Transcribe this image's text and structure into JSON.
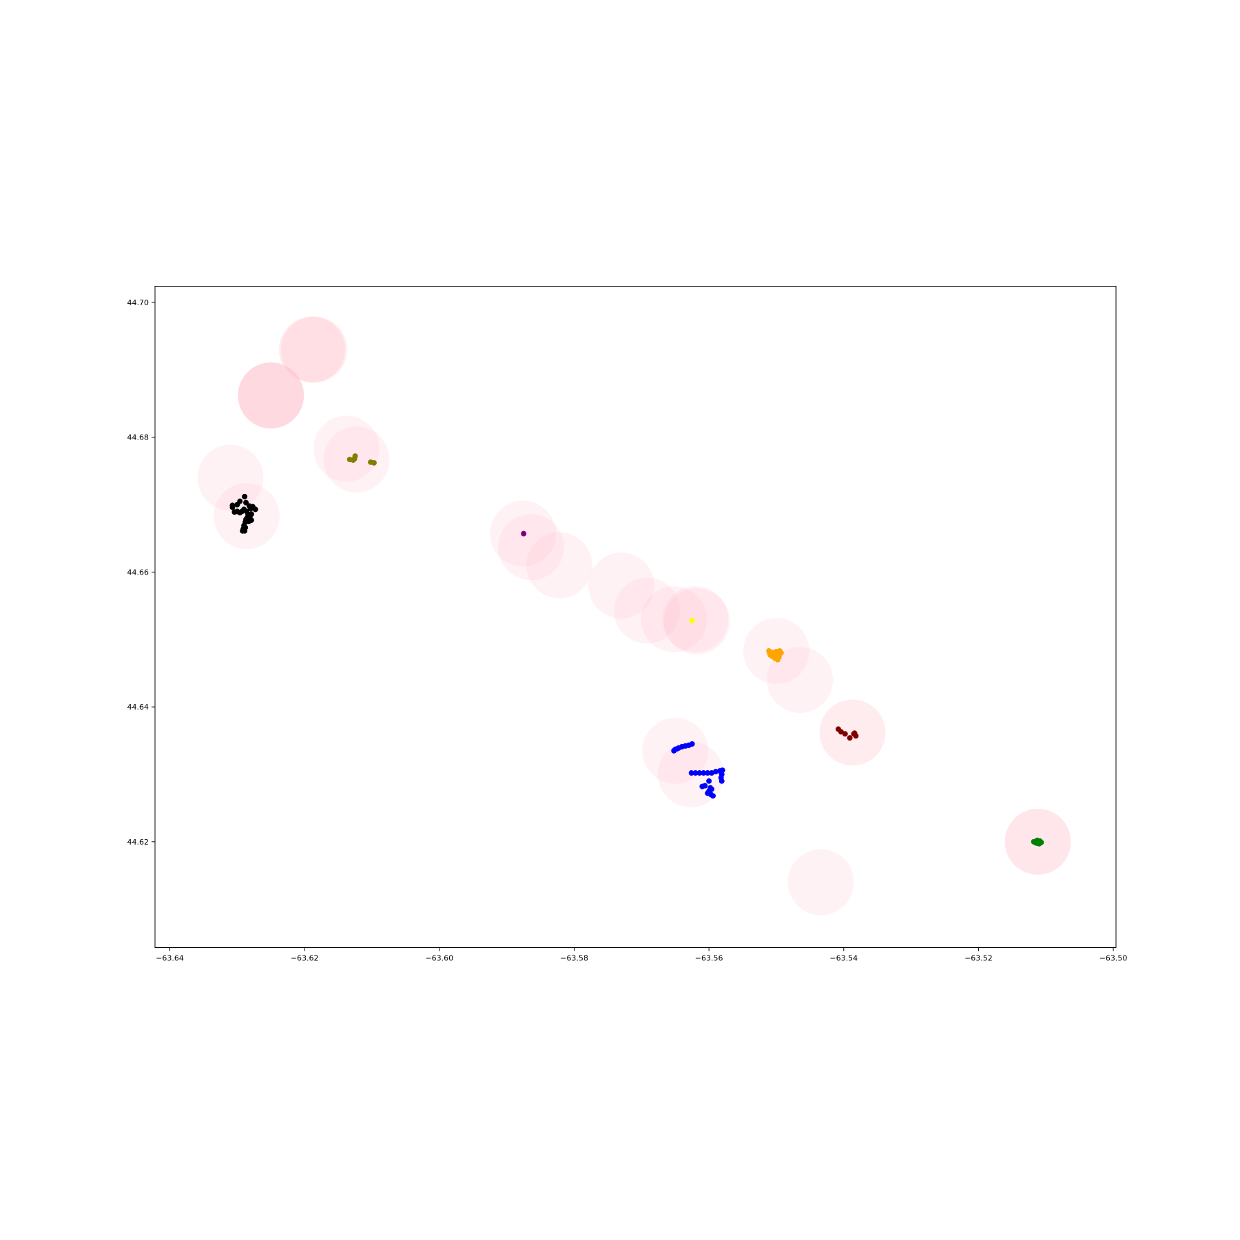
{
  "chart_data": {
    "type": "scatter",
    "xlim": [
      -63.6422,
      -63.4996
    ],
    "ylim": [
      44.6043,
      44.7024
    ],
    "x_ticks": [
      -63.64,
      -63.62,
      -63.6,
      -63.58,
      -63.56,
      -63.54,
      -63.52,
      -63.5
    ],
    "y_ticks": [
      44.62,
      44.64,
      44.66,
      44.68,
      44.7
    ],
    "x_tick_labels": [
      "−63.64",
      "−63.62",
      "−63.60",
      "−63.58",
      "−63.56",
      "−63.54",
      "−63.52",
      "−63.50"
    ],
    "y_tick_labels": [
      "44.62",
      "44.64",
      "44.66",
      "44.68",
      "44.70"
    ],
    "grid": false,
    "legend": "none",
    "circle_color": "#ffc0cb",
    "circle_radius_deg": 0.0049,
    "circles": [
      {
        "x": -63.6189,
        "y": 44.693,
        "alpha": 0.3
      },
      {
        "x": -63.6186,
        "y": 44.693,
        "alpha": 0.3
      },
      {
        "x": -63.625,
        "y": 44.6862,
        "alpha": 0.6
      },
      {
        "x": -63.6138,
        "y": 44.6783,
        "alpha": 0.2
      },
      {
        "x": -63.6123,
        "y": 44.6767,
        "alpha": 0.2
      },
      {
        "x": -63.631,
        "y": 44.674,
        "alpha": 0.2
      },
      {
        "x": -63.6286,
        "y": 44.6683,
        "alpha": 0.2
      },
      {
        "x": -63.5876,
        "y": 44.6657,
        "alpha": 0.2
      },
      {
        "x": -63.5864,
        "y": 44.6637,
        "alpha": 0.2
      },
      {
        "x": -63.5822,
        "y": 44.661,
        "alpha": 0.2
      },
      {
        "x": -63.573,
        "y": 44.658,
        "alpha": 0.2
      },
      {
        "x": -63.5692,
        "y": 44.6543,
        "alpha": 0.2
      },
      {
        "x": -63.5652,
        "y": 44.653,
        "alpha": 0.2
      },
      {
        "x": -63.5618,
        "y": 44.6527,
        "alpha": 0.2
      },
      {
        "x": -63.562,
        "y": 44.653,
        "alpha": 0.2
      },
      {
        "x": -63.55,
        "y": 44.6483,
        "alpha": 0.2
      },
      {
        "x": -63.5465,
        "y": 44.644,
        "alpha": 0.2
      },
      {
        "x": -63.5387,
        "y": 44.6362,
        "alpha": 0.3
      },
      {
        "x": -63.565,
        "y": 44.6335,
        "alpha": 0.2
      },
      {
        "x": -63.5627,
        "y": 44.63,
        "alpha": 0.2
      },
      {
        "x": -63.5112,
        "y": 44.62,
        "alpha": 0.4
      },
      {
        "x": -63.5434,
        "y": 44.614,
        "alpha": 0.2
      }
    ],
    "series": [
      {
        "color": "#000000",
        "points": [
          [
            -63.6289,
            44.6712
          ],
          [
            -63.6307,
            44.6699
          ],
          [
            -63.6307,
            44.6696
          ],
          [
            -63.6296,
            44.6705
          ],
          [
            -63.63,
            44.67
          ],
          [
            -63.6287,
            44.6703
          ],
          [
            -63.6282,
            44.6698
          ],
          [
            -63.6277,
            44.6697
          ],
          [
            -63.6273,
            44.6693
          ],
          [
            -63.628,
            44.6694
          ],
          [
            -63.6304,
            44.6689
          ],
          [
            -63.63,
            44.669
          ],
          [
            -63.6296,
            44.6688
          ],
          [
            -63.6293,
            44.669
          ],
          [
            -63.629,
            44.6693
          ],
          [
            -63.6286,
            44.669
          ],
          [
            -63.6284,
            44.6686
          ],
          [
            -63.6281,
            44.6683
          ],
          [
            -63.6279,
            44.6686
          ],
          [
            -63.6285,
            44.6681
          ],
          [
            -63.6287,
            44.6678
          ],
          [
            -63.6283,
            44.6675
          ],
          [
            -63.6279,
            44.6677
          ],
          [
            -63.6288,
            44.6674
          ],
          [
            -63.629,
            44.6669
          ],
          [
            -63.6291,
            44.6664
          ],
          [
            -63.6289,
            44.6661
          ],
          [
            -63.6292,
            44.6661
          ],
          [
            -63.6288,
            44.6666
          ],
          [
            -63.6284,
            44.6676
          ]
        ]
      },
      {
        "color": "#808000",
        "points": [
          [
            -63.6125,
            44.6772
          ],
          [
            -63.6133,
            44.6767
          ],
          [
            -63.6128,
            44.6766
          ],
          [
            -63.6126,
            44.6768
          ],
          [
            -63.6102,
            44.6763
          ],
          [
            -63.6097,
            44.6762
          ]
        ]
      },
      {
        "color": "#800080",
        "points": [
          [
            -63.5875,
            44.6657
          ]
        ]
      },
      {
        "color": "#ffff00",
        "points": [
          [
            -63.5625,
            44.6528
          ]
        ]
      },
      {
        "color": "#ffa500",
        "points": [
          [
            -63.5511,
            44.6483
          ],
          [
            -63.5505,
            44.6481
          ],
          [
            -63.55,
            44.6482
          ],
          [
            -63.5495,
            44.6483
          ],
          [
            -63.5493,
            44.648
          ],
          [
            -63.5509,
            44.6477
          ],
          [
            -63.5506,
            44.6475
          ],
          [
            -63.5502,
            44.6472
          ],
          [
            -63.5498,
            44.647
          ],
          [
            -63.5503,
            44.6478
          ],
          [
            -63.5499,
            44.6477
          ],
          [
            -63.5496,
            44.6474
          ],
          [
            -63.551,
            44.648
          ],
          [
            -63.5501,
            44.6475
          ]
        ]
      },
      {
        "color": "#800000",
        "points": [
          [
            -63.5408,
            44.6367
          ],
          [
            -63.5404,
            44.6363
          ],
          [
            -63.5398,
            44.636
          ],
          [
            -63.5385,
            44.636
          ],
          [
            -63.5382,
            44.6357
          ],
          [
            -63.5391,
            44.6354
          ],
          [
            -63.5384,
            44.6361
          ]
        ]
      },
      {
        "color": "#0000ff",
        "points": [
          [
            -63.5625,
            44.6345
          ],
          [
            -63.563,
            44.6343
          ],
          [
            -63.5635,
            44.6342
          ],
          [
            -63.564,
            44.6341
          ],
          [
            -63.5645,
            44.6339
          ],
          [
            -63.5647,
            44.6338
          ],
          [
            -63.565,
            44.6337
          ],
          [
            -63.5652,
            44.6335
          ],
          [
            -63.5626,
            44.6302
          ],
          [
            -63.562,
            44.6302
          ],
          [
            -63.5614,
            44.6302
          ],
          [
            -63.5608,
            44.6302
          ],
          [
            -63.5602,
            44.6302
          ],
          [
            -63.5596,
            44.6302
          ],
          [
            -63.559,
            44.6304
          ],
          [
            -63.5584,
            44.6305
          ],
          [
            -63.558,
            44.6306
          ],
          [
            -63.5581,
            44.63
          ],
          [
            -63.5582,
            44.6295
          ],
          [
            -63.5581,
            44.629
          ],
          [
            -63.56,
            44.629
          ],
          [
            -63.5606,
            44.6283
          ],
          [
            -63.561,
            44.6282
          ],
          [
            -63.5598,
            44.628
          ],
          [
            -63.56,
            44.6275
          ],
          [
            -63.5602,
            44.6272
          ],
          [
            -63.5597,
            44.627
          ],
          [
            -63.5594,
            44.6268
          ],
          [
            -63.5596,
            44.6278
          ]
        ]
      },
      {
        "color": "#008000",
        "points": [
          [
            -63.5118,
            44.62
          ],
          [
            -63.5114,
            44.6198
          ],
          [
            -63.511,
            44.6197
          ],
          [
            -63.5107,
            44.6199
          ],
          [
            -63.5109,
            44.6201
          ],
          [
            -63.5113,
            44.6202
          ],
          [
            -63.5116,
            44.6199
          ],
          [
            -63.5111,
            44.6199
          ]
        ]
      }
    ]
  }
}
